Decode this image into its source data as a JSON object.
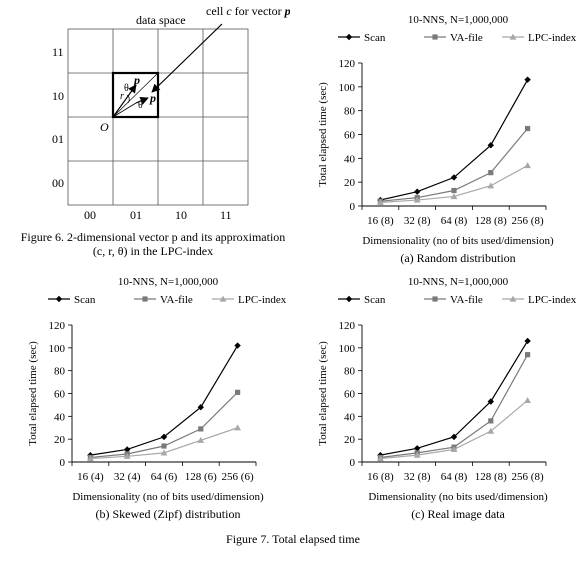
{
  "figure6": {
    "data_space_label": "data space",
    "cell_label_prefix": "cell ",
    "cell_label_var": "c",
    "cell_label_mid": " for vector ",
    "cell_label_vec": "p",
    "y_ticks": [
      "11",
      "10",
      "01",
      "00"
    ],
    "x_ticks": [
      "00",
      "01",
      "10",
      "11"
    ],
    "origin_label": "O",
    "p_label": "p",
    "r_label": "r",
    "theta_label": "θ",
    "caption_line1": "Figure 6.  2-dimensional vector p and its approximation",
    "caption_line2": "(c, r, θ) in the LPC-index"
  },
  "figure7_caption": "Figure 7. Total elapsed time",
  "legend_labels": [
    "Scan",
    "VA-file",
    "LPC-index"
  ],
  "colors": {
    "scan": "#000000",
    "va": "#7a7a7a",
    "lpc": "#a8a8a8",
    "axis": "#000000"
  },
  "chart_data": [
    {
      "type": "line",
      "title": "10-NNS, N=1,000,000",
      "categories": [
        "16 (8)",
        "32 (8)",
        "64 (8)",
        "128 (8)",
        "256 (8)"
      ],
      "series": [
        {
          "name": "Scan",
          "values": [
            5,
            12,
            24,
            51,
            106
          ]
        },
        {
          "name": "VA-file",
          "values": [
            4,
            7,
            13,
            28,
            65
          ]
        },
        {
          "name": "LPC-index",
          "values": [
            3,
            5,
            8,
            17,
            34
          ]
        }
      ],
      "xlabel": "Dimensionality (no of bits used/dimension)",
      "ylabel": "Total elapsed time (sec)",
      "ylim": [
        0,
        120
      ],
      "yticks": [
        0,
        20,
        40,
        60,
        80,
        100,
        120
      ],
      "caption": "(a) Random distribution"
    },
    {
      "type": "line",
      "title": "10-NNS, N=1,000,000",
      "categories": [
        "16 (4)",
        "32 (4)",
        "64 (6)",
        "128 (6)",
        "256 (6)"
      ],
      "series": [
        {
          "name": "Scan",
          "values": [
            6,
            11,
            22,
            48,
            102
          ]
        },
        {
          "name": "VA-file",
          "values": [
            4,
            7,
            14,
            29,
            61
          ]
        },
        {
          "name": "LPC-index",
          "values": [
            3,
            5,
            8,
            19,
            30
          ]
        }
      ],
      "xlabel": "Dimensionality (no of bits used/dimension)",
      "ylabel": "Total elapsed time (sec)",
      "ylim": [
        0,
        120
      ],
      "yticks": [
        0,
        20,
        40,
        60,
        80,
        100,
        120
      ],
      "caption": "(b) Skewed (Zipf) distribution"
    },
    {
      "type": "line",
      "title": "10-NNS, N=1,000,000",
      "categories": [
        "16 (8)",
        "32 (8)",
        "64 (8)",
        "128 (8)",
        "256 (8)"
      ],
      "series": [
        {
          "name": "Scan",
          "values": [
            6,
            12,
            22,
            53,
            106
          ]
        },
        {
          "name": "VA-file",
          "values": [
            4,
            8,
            13,
            36,
            94
          ]
        },
        {
          "name": "LPC-index",
          "values": [
            3,
            6,
            11,
            27,
            54
          ]
        }
      ],
      "xlabel": "Dimensionality (no bits used/dimension)",
      "ylabel": "Total elapsed time (sec)",
      "ylim": [
        0,
        120
      ],
      "yticks": [
        0,
        20,
        40,
        60,
        80,
        100,
        120
      ],
      "caption": "(c) Real image data"
    }
  ]
}
